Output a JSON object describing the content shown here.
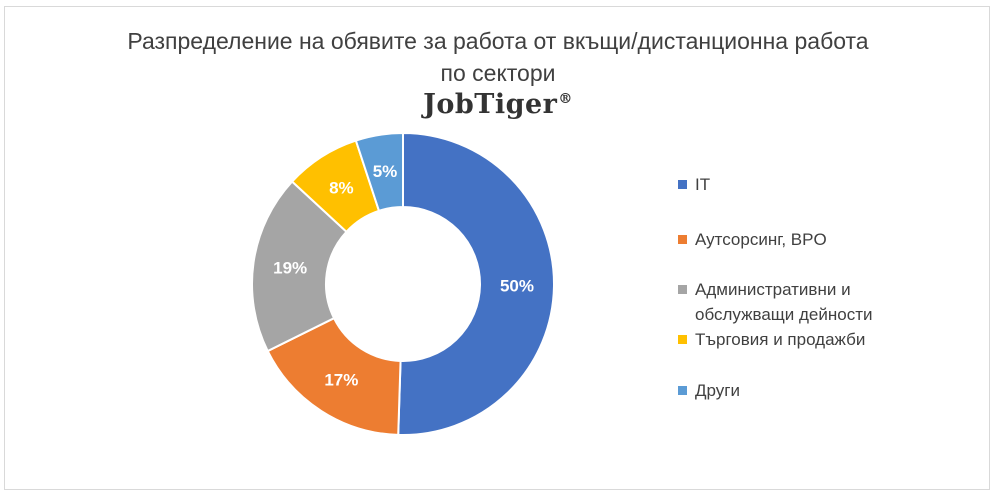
{
  "chart_data": {
    "type": "pie",
    "donut": true,
    "title_lines": [
      "Разпределение на обявите за работа от вкъщи/дистанционна работа",
      "по сектори"
    ],
    "categories": [
      "IT",
      "Аутсорсинг, BPO",
      "Административни и обслужващи дейности",
      "Търговия и продажби",
      "Други"
    ],
    "values": [
      50,
      17,
      19,
      8,
      5
    ],
    "data_labels": [
      "50%",
      "17%",
      "19%",
      "8%",
      "5%"
    ],
    "colors": [
      "#4472C4",
      "#ED7D31",
      "#A5A5A5",
      "#FFC000",
      "#5B9BD5"
    ],
    "legend_position": "right"
  },
  "brand": {
    "name": "JobTiger",
    "mark": "®"
  }
}
